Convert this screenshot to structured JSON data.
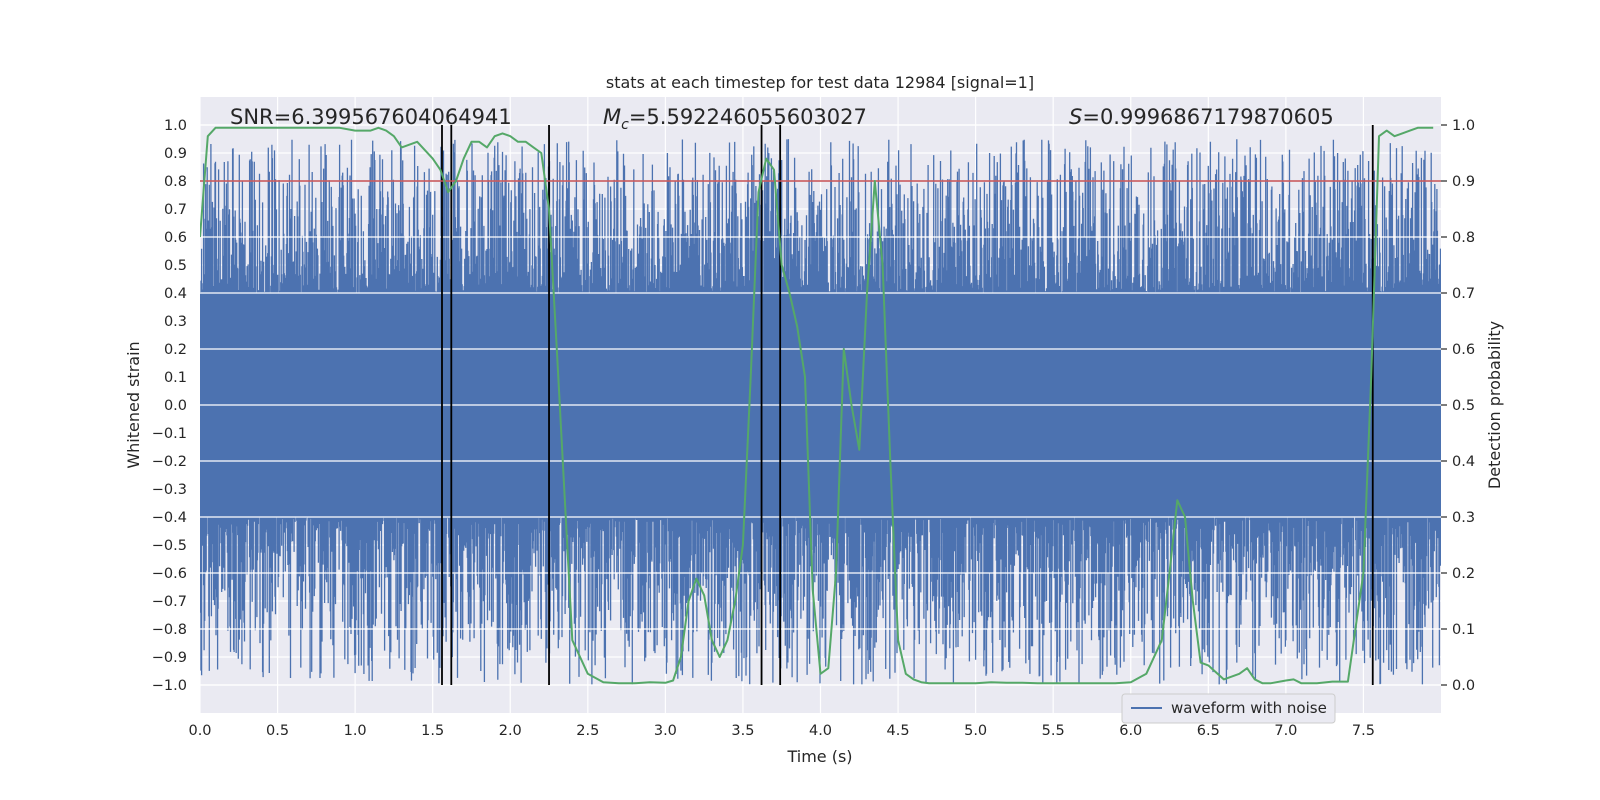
{
  "chart_data": {
    "type": "line",
    "title": "stats at each timestep for test data 12984 [signal=1]",
    "xlabel": "Time (s)",
    "ylabel": "Whitened strain",
    "y2label": "Detection probability",
    "xlim": [
      0.0,
      8.0
    ],
    "ylim": [
      -1.1,
      1.1
    ],
    "y2lim": [
      -0.05,
      1.05
    ],
    "x_ticks": [
      "0.0",
      "0.5",
      "1.0",
      "1.5",
      "2.0",
      "2.5",
      "3.0",
      "3.5",
      "4.0",
      "4.5",
      "5.0",
      "5.5",
      "6.0",
      "6.5",
      "7.0",
      "7.5"
    ],
    "y_ticks": [
      "1.0",
      "0.9",
      "0.8",
      "0.7",
      "0.6",
      "0.5",
      "0.4",
      "0.3",
      "0.2",
      "0.1",
      "0.0",
      "−0.1",
      "−0.2",
      "−0.3",
      "−0.4",
      "−0.5",
      "−0.6",
      "−0.7",
      "−0.8",
      "−0.9",
      "−1.0"
    ],
    "y2_ticks": [
      "1.0",
      "0.9",
      "0.8",
      "0.7",
      "0.6",
      "0.5",
      "0.4",
      "0.3",
      "0.2",
      "0.1",
      "0.0"
    ],
    "annotations": {
      "snr": "SNR=6.399567604064941",
      "mc_symbol": "M",
      "mc_sub": "c",
      "mc_value": "=5.592246055603027",
      "s_symbol": "S",
      "s_value": "=0.9996867179870605"
    },
    "legend": {
      "label": "waveform with noise",
      "location": "lower-right"
    },
    "threshold": {
      "value": 0.9,
      "axis": "right",
      "color": "#c44e52"
    },
    "vertical_lines": [
      1.56,
      1.62,
      2.25,
      3.62,
      3.74,
      7.56
    ],
    "waveform": {
      "name": "waveform with noise",
      "color": "#4c72b0",
      "dense_band": [
        -0.4,
        0.4
      ],
      "peak_range": [
        -1.0,
        0.95
      ]
    },
    "probability_series": {
      "name": "Detection probability",
      "color": "#55a868",
      "x": [
        0.0,
        0.05,
        0.1,
        0.2,
        0.3,
        0.5,
        0.7,
        0.9,
        1.0,
        1.1,
        1.15,
        1.2,
        1.25,
        1.3,
        1.4,
        1.5,
        1.55,
        1.6,
        1.65,
        1.7,
        1.75,
        1.8,
        1.85,
        1.9,
        1.95,
        2.0,
        2.05,
        2.1,
        2.15,
        2.2,
        2.25,
        2.3,
        2.4,
        2.5,
        2.6,
        2.7,
        2.8,
        2.9,
        3.0,
        3.05,
        3.1,
        3.15,
        3.2,
        3.25,
        3.3,
        3.35,
        3.4,
        3.45,
        3.5,
        3.55,
        3.6,
        3.65,
        3.7,
        3.75,
        3.8,
        3.85,
        3.9,
        3.95,
        4.0,
        4.05,
        4.1,
        4.15,
        4.2,
        4.25,
        4.3,
        4.35,
        4.4,
        4.45,
        4.5,
        4.55,
        4.6,
        4.65,
        4.7,
        4.8,
        4.9,
        5.0,
        5.1,
        5.2,
        5.3,
        5.4,
        5.5,
        5.6,
        5.7,
        5.8,
        5.9,
        6.0,
        6.1,
        6.2,
        6.25,
        6.3,
        6.35,
        6.4,
        6.45,
        6.5,
        6.6,
        6.7,
        6.75,
        6.8,
        6.85,
        6.9,
        7.0,
        7.05,
        7.1,
        7.15,
        7.2,
        7.3,
        7.4,
        7.5,
        7.55,
        7.6,
        7.65,
        7.7,
        7.75,
        7.8,
        7.85,
        7.9,
        7.95
      ],
      "y": [
        0.8,
        0.98,
        0.995,
        0.995,
        0.995,
        0.995,
        0.995,
        0.995,
        0.99,
        0.99,
        0.995,
        0.99,
        0.98,
        0.96,
        0.97,
        0.94,
        0.92,
        0.88,
        0.9,
        0.94,
        0.97,
        0.97,
        0.96,
        0.98,
        0.985,
        0.98,
        0.97,
        0.97,
        0.96,
        0.95,
        0.85,
        0.6,
        0.08,
        0.02,
        0.005,
        0.003,
        0.003,
        0.005,
        0.004,
        0.008,
        0.05,
        0.15,
        0.19,
        0.16,
        0.08,
        0.05,
        0.08,
        0.15,
        0.25,
        0.55,
        0.88,
        0.94,
        0.92,
        0.75,
        0.7,
        0.64,
        0.55,
        0.17,
        0.02,
        0.03,
        0.2,
        0.6,
        0.5,
        0.42,
        0.7,
        0.9,
        0.75,
        0.4,
        0.08,
        0.02,
        0.01,
        0.005,
        0.003,
        0.003,
        0.003,
        0.003,
        0.005,
        0.004,
        0.004,
        0.003,
        0.003,
        0.003,
        0.003,
        0.003,
        0.003,
        0.005,
        0.02,
        0.08,
        0.2,
        0.33,
        0.3,
        0.15,
        0.04,
        0.035,
        0.01,
        0.02,
        0.03,
        0.01,
        0.003,
        0.003,
        0.008,
        0.01,
        0.003,
        0.003,
        0.003,
        0.006,
        0.006,
        0.2,
        0.55,
        0.98,
        0.99,
        0.98,
        0.985,
        0.99,
        0.995,
        0.995,
        0.995
      ]
    }
  }
}
